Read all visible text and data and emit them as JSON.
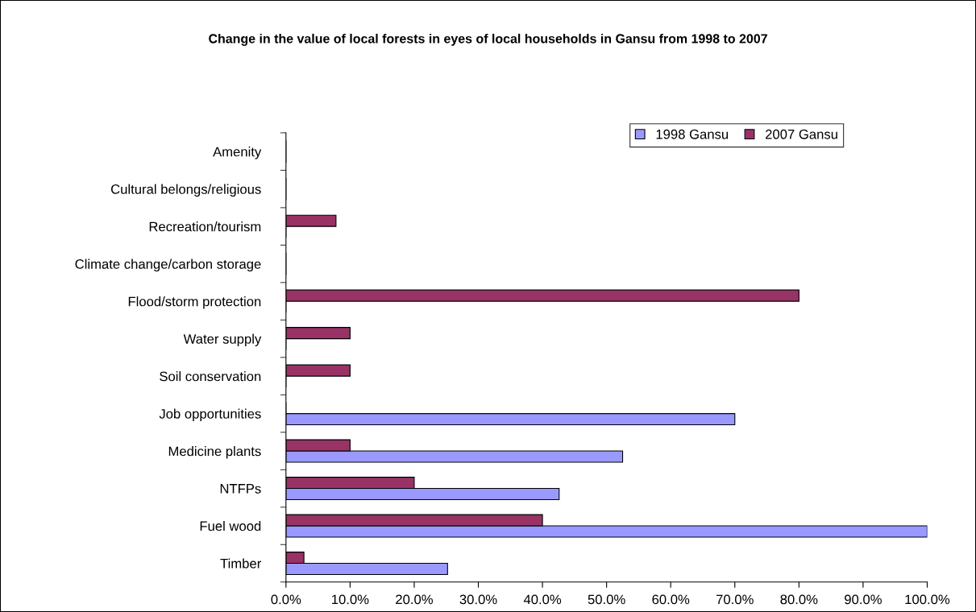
{
  "chart_data": {
    "type": "bar",
    "orientation": "horizontal",
    "title": "Change in the value of local forests in eyes of local households in Gansu from 1998 to 2007",
    "categories": [
      "Amenity",
      "Cultural belongs/religious",
      "Recreation/tourism",
      "Climate change/carbon storage",
      "Flood/storm protection",
      "Water supply",
      "Soil conservation",
      "Job opportunities",
      "Medicine plants",
      "NTFPs",
      "Fuel wood",
      "Timber"
    ],
    "series": [
      {
        "name": "1998 Gansu",
        "color": "#9999ff",
        "values": [
          0,
          0,
          0,
          0,
          0,
          0,
          0,
          70,
          52.5,
          42.6,
          100,
          25.2
        ]
      },
      {
        "name": "2007 Gansu",
        "color": "#993366",
        "values": [
          0,
          0,
          7.8,
          0,
          80,
          10,
          10,
          0,
          10,
          20,
          40,
          2.8
        ]
      }
    ],
    "xlim": [
      0,
      100
    ],
    "xticks": [
      {
        "value": 0,
        "label": "0.0%"
      },
      {
        "value": 10,
        "label": "10.0%"
      },
      {
        "value": 20,
        "label": "20.0%"
      },
      {
        "value": 30,
        "label": "30.0%"
      },
      {
        "value": 40,
        "label": "40.0%"
      },
      {
        "value": 50,
        "label": "50.0%"
      },
      {
        "value": 60,
        "label": "60.0%"
      },
      {
        "value": 70,
        "label": "70.0%"
      },
      {
        "value": 80,
        "label": "80.0%"
      },
      {
        "value": 90,
        "label": "90.0%"
      },
      {
        "value": 100,
        "label": "100.0%"
      }
    ],
    "grid": false,
    "legend": "top right"
  }
}
